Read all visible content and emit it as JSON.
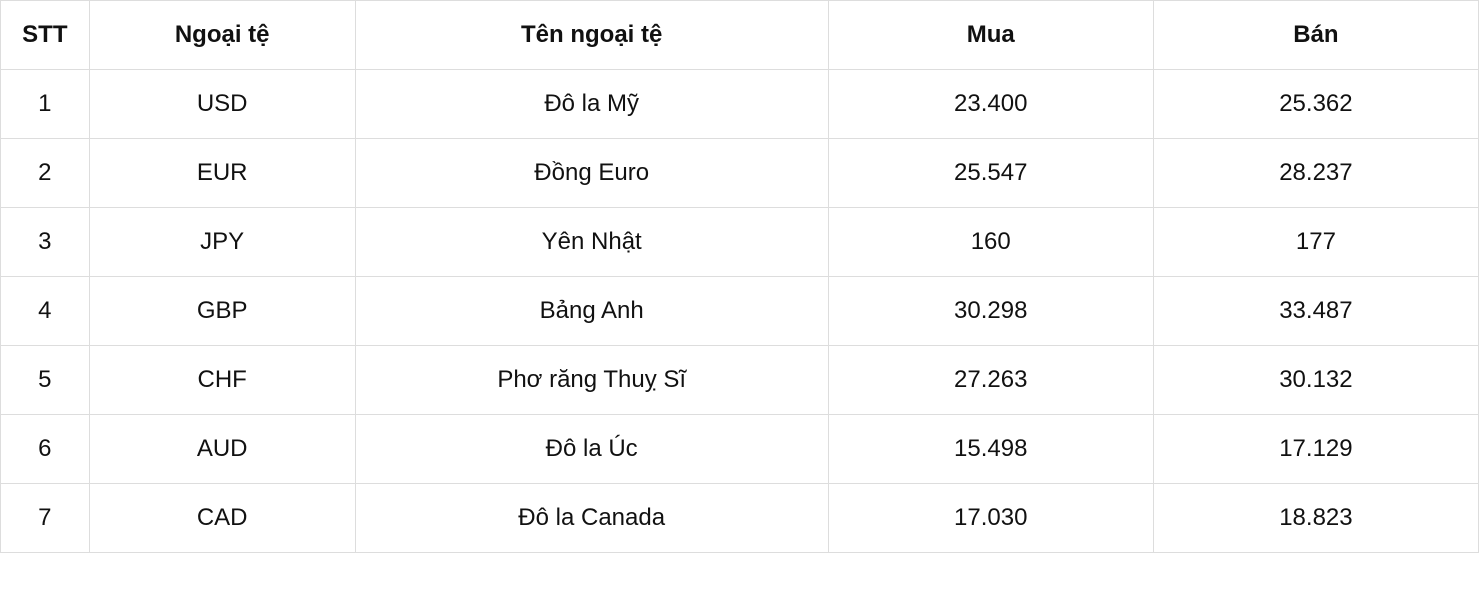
{
  "table": {
    "type": "table",
    "background_color": "#ffffff",
    "border_color": "#dddddd",
    "text_color": "#111111",
    "header_font_weight": 700,
    "body_font_weight": 400,
    "font_size": 24,
    "cell_padding": 20,
    "text_align": "center",
    "font_family": "Arial, Helvetica, sans-serif",
    "columns": [
      {
        "key": "stt",
        "label": "STT",
        "width_pct": 6
      },
      {
        "key": "code",
        "label": "Ngoại tệ",
        "width_pct": 18
      },
      {
        "key": "name",
        "label": "Tên ngoại tệ",
        "width_pct": 32
      },
      {
        "key": "buy",
        "label": "Mua",
        "width_pct": 22
      },
      {
        "key": "sell",
        "label": "Bán",
        "width_pct": 22
      }
    ],
    "rows": [
      {
        "stt": "1",
        "code": "USD",
        "name": "Đô la Mỹ",
        "buy": "23.400",
        "sell": "25.362"
      },
      {
        "stt": "2",
        "code": "EUR",
        "name": "Đồng Euro",
        "buy": "25.547",
        "sell": "28.237"
      },
      {
        "stt": "3",
        "code": "JPY",
        "name": "Yên Nhật",
        "buy": "160",
        "sell": "177"
      },
      {
        "stt": "4",
        "code": "GBP",
        "name": "Bảng Anh",
        "buy": "30.298",
        "sell": "33.487"
      },
      {
        "stt": "5",
        "code": "CHF",
        "name": "Phơ răng Thuỵ Sĩ",
        "buy": "27.263",
        "sell": "30.132"
      },
      {
        "stt": "6",
        "code": "AUD",
        "name": "Đô la Úc",
        "buy": "15.498",
        "sell": "17.129"
      },
      {
        "stt": "7",
        "code": "CAD",
        "name": "Đô la Canada",
        "buy": "17.030",
        "sell": "18.823"
      }
    ]
  }
}
